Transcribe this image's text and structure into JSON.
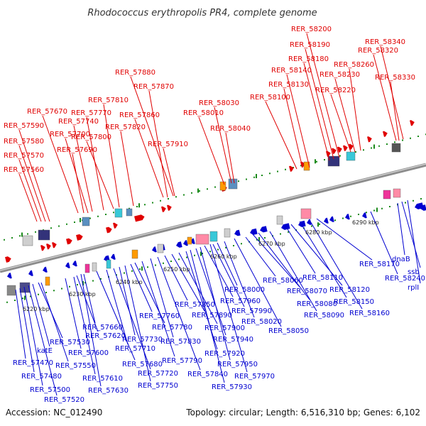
{
  "title": "Rhodococcus erythropolis PR4, complete genome",
  "footer": {
    "accession": "Accession: NC_012490",
    "summary": "Topology: circular; Length: 6,516,310 bp; Genes: 6,102"
  },
  "colors": {
    "top_strand": "#e00000",
    "bottom_strand": "#0000d0",
    "backbone": "#8c8c8c",
    "tick": "#1a8a1a"
  },
  "scale_labels": [
    "6220 kbp",
    "6230 kbp",
    "6240 kbp",
    "6250 kbp",
    "6260 kbp",
    "6270 kbp",
    "6280 kbp",
    "6290 kbp"
  ],
  "top_genes": [
    "RER_57560",
    "RER_57570",
    "RER_57580",
    "RER_57590",
    "RER_57670",
    "RER_57690",
    "RER_57700",
    "RER_57740",
    "RER_57770",
    "RER_57800",
    "RER_57810",
    "RER_57820",
    "RER_57860",
    "RER_57870",
    "RER_57880",
    "RER_57910",
    "RER_58010",
    "RER_58030",
    "RER_58040",
    "RER_58100",
    "RER_58130",
    "RER_58140",
    "RER_58180",
    "RER_58190",
    "RER_58200",
    "RER_58220",
    "RER_58230",
    "RER_58260",
    "RER_58320",
    "RER_58330",
    "RER_58340"
  ],
  "bottom_genes": [
    "RER_57470",
    "RER_57480",
    "RER_57500",
    "RER_57520",
    "katE",
    "RER_57530",
    "RER_57550",
    "RER_57600",
    "RER_57610",
    "RER_57620",
    "RER_57630",
    "RER_57660",
    "RER_57680",
    "RER_57710",
    "RER_57720",
    "RER_57730",
    "RER_57750",
    "RER_57760",
    "RER_57780",
    "RER_57790",
    "RER_57830",
    "RER_57840",
    "RER_57850",
    "RER_57890",
    "RER_57900",
    "RER_57920",
    "RER_57930",
    "RER_57940",
    "RER_57950",
    "RER_57960",
    "RER_57970",
    "RER_57990",
    "RER_58000",
    "RER_58020",
    "RER_58050",
    "RER_58060",
    "RER_58070",
    "RER_58080",
    "RER_58090",
    "RER_58110",
    "RER_58120",
    "RER_58150",
    "RER_58160",
    "RER_58170",
    "RER_58240",
    "dnaB",
    "ssb",
    "rplI"
  ]
}
